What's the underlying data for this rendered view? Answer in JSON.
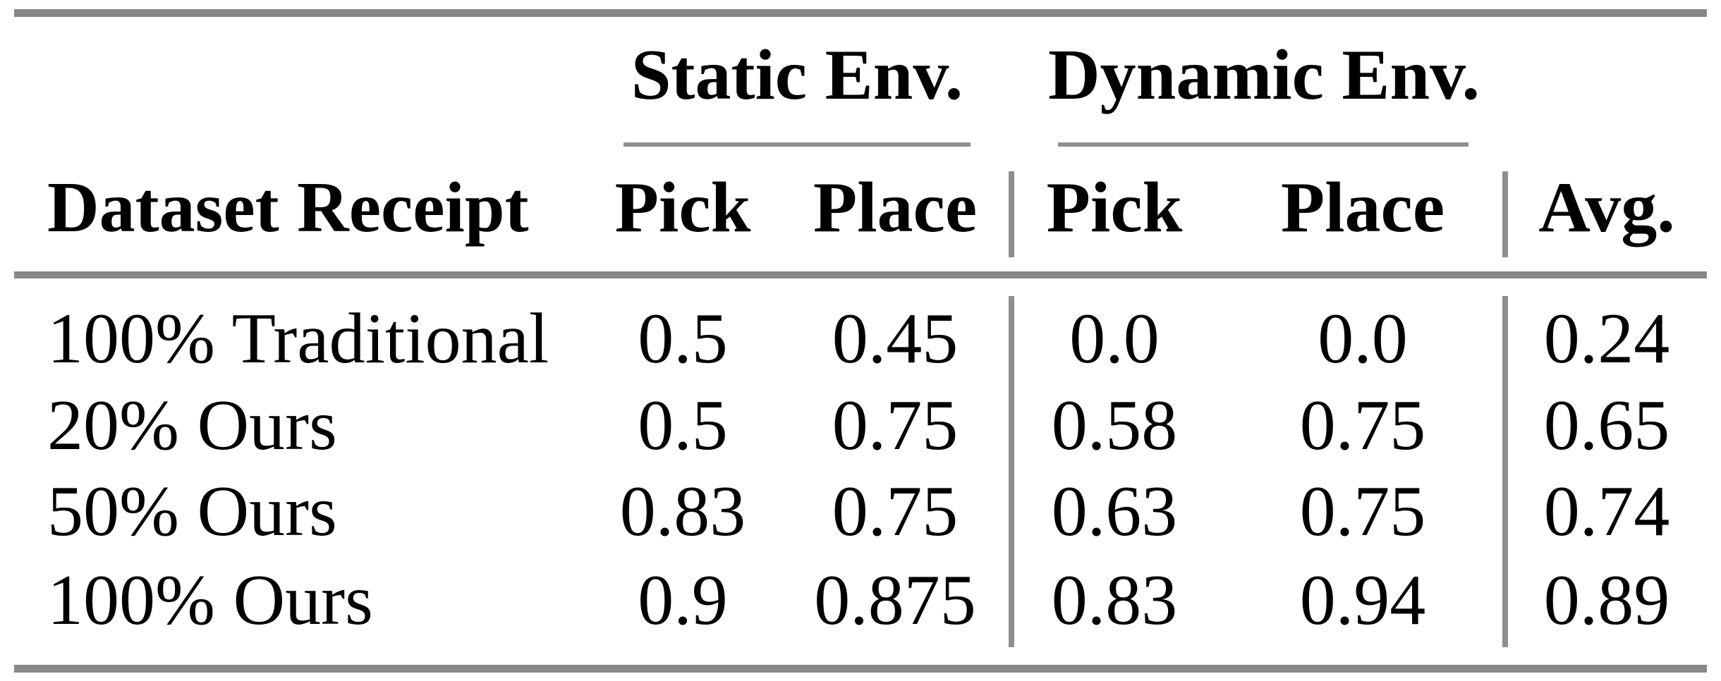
{
  "table": {
    "header": {
      "group_static": "Static Env.",
      "group_dynamic": "Dynamic Env.",
      "col_dataset": "Dataset Receipt",
      "col_static_pick": "Pick",
      "col_static_place": "Place",
      "col_dynamic_pick": "Pick",
      "col_dynamic_place": "Place",
      "col_avg": "Avg."
    },
    "rows": [
      {
        "label": "100% Traditional",
        "cells": [
          "0.5",
          "0.45",
          "0.0",
          "0.0",
          "0.24"
        ]
      },
      {
        "label": "20% Ours",
        "cells": [
          "0.5",
          "0.75",
          "0.58",
          "0.75",
          "0.65"
        ]
      },
      {
        "label": "50% Ours",
        "cells": [
          "0.83",
          "0.75",
          "0.63",
          "0.75",
          "0.74"
        ]
      },
      {
        "label": "100% Ours",
        "cells": [
          "0.9",
          "0.875",
          "0.83",
          "0.94",
          "0.89"
        ]
      }
    ]
  },
  "colors": {
    "rule_heavy": "#878787",
    "rule_light": "#8f8f8f",
    "text": "#000000",
    "background": "#ffffff"
  },
  "chart_data": {
    "type": "table",
    "title": "",
    "column_groups": [
      "Static Env.",
      "Dynamic Env."
    ],
    "columns": [
      "Dataset Receipt",
      "Static Env. Pick",
      "Static Env. Place",
      "Dynamic Env. Pick",
      "Dynamic Env. Place",
      "Avg."
    ],
    "rows": [
      [
        "100% Traditional",
        0.5,
        0.45,
        0.0,
        0.0,
        0.24
      ],
      [
        "20% Ours",
        0.5,
        0.75,
        0.58,
        0.75,
        0.65
      ],
      [
        "50% Ours",
        0.83,
        0.75,
        0.63,
        0.75,
        0.74
      ],
      [
        "100% Ours",
        0.9,
        0.875,
        0.83,
        0.94,
        0.89
      ]
    ]
  }
}
